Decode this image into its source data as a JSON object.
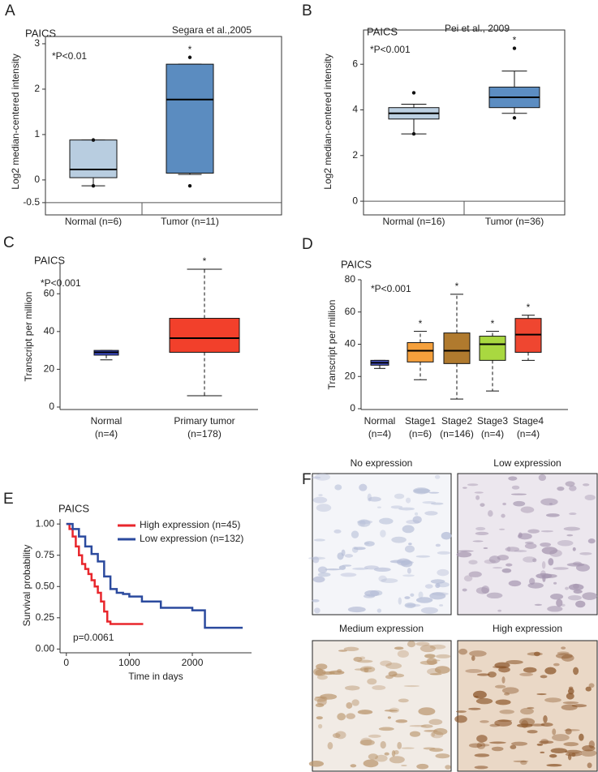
{
  "chart_data": [
    {
      "type": "box",
      "panel": "A",
      "title": "PAICS",
      "source": "Segara et al.,2005",
      "annotation": "*P<0.01",
      "ylabel": "Log2 median-centered intensity",
      "ylim": [
        -0.77,
        3.16
      ],
      "yticks": [
        -0.5,
        0,
        1,
        2,
        3
      ],
      "baseline": -0.5,
      "frame": true,
      "boxes": [
        {
          "category": "Normal (n=6)",
          "color": "#b8cde0",
          "whisker_low": -0.13,
          "q1": 0.05,
          "median": 0.23,
          "q3": 0.88,
          "whisker_high": 0.88,
          "dots": [
            0.88,
            -0.13
          ]
        },
        {
          "category": "Tumor (n=11)",
          "color": "#5b8cc0",
          "whisker_low": 0.12,
          "q1": 0.15,
          "median": 1.77,
          "q3": 2.55,
          "whisker_high": 2.55,
          "dots": [
            2.7,
            -0.13
          ],
          "star": "*"
        }
      ]
    },
    {
      "type": "box",
      "panel": "B",
      "title": "PAICS",
      "source": "Pei et al., 2009",
      "annotation": "*P<0.001",
      "ylabel": "Log2 median-centered intensity",
      "ylim": [
        -0.6,
        7.5
      ],
      "yticks": [
        0,
        2,
        4,
        6
      ],
      "baseline": 0,
      "frame": true,
      "boxes": [
        {
          "category": "Normal (n=16)",
          "color": "#bcd0e2",
          "whisker_low": 2.95,
          "q1": 3.6,
          "median": 3.85,
          "q3": 4.1,
          "whisker_high": 4.25,
          "dots": [
            4.75,
            2.95
          ]
        },
        {
          "category": "Tumor (n=36)",
          "color": "#5c8dc2",
          "whisker_low": 3.85,
          "q1": 4.1,
          "median": 4.55,
          "q3": 5.0,
          "whisker_high": 5.7,
          "dots": [
            6.7,
            3.65
          ],
          "star": "*"
        }
      ]
    },
    {
      "type": "box",
      "panel": "C",
      "title": "PAICS",
      "annotation": "*P<0.001",
      "ylabel": "Transcript per million",
      "ylim": [
        -1.3,
        76
      ],
      "yticks": [
        0,
        20,
        40,
        60
      ],
      "frame": false,
      "boxes": [
        {
          "category": [
            "Normal",
            "(n=4)"
          ],
          "color": "#3f4fd4",
          "whisker_low": 25,
          "q1": 27.5,
          "median": 29,
          "q3": 30,
          "whisker_high": 30,
          "dots": []
        },
        {
          "category": [
            "Primary tumor",
            "(n=178)"
          ],
          "color": "#f2402b",
          "whisker_low": 6,
          "q1": 29,
          "median": 36.5,
          "q3": 47,
          "whisker_high": 73,
          "dots": [],
          "star": "*"
        }
      ]
    },
    {
      "type": "box",
      "panel": "D",
      "title": "PAICS",
      "annotation": "*P<0.001",
      "ylabel": "Transcript per million",
      "ylim": [
        -0.5,
        80
      ],
      "yticks": [
        0,
        20,
        40,
        60,
        80
      ],
      "frame": false,
      "boxes": [
        {
          "category": [
            "Normal",
            "(n=4)"
          ],
          "color": "#4a56c8",
          "whisker_low": 25,
          "q1": 27,
          "median": 28.5,
          "q3": 30,
          "whisker_high": 30,
          "dots": []
        },
        {
          "category": [
            "Stage1",
            "(n=6)"
          ],
          "color": "#f5a03c",
          "whisker_low": 18,
          "q1": 29,
          "median": 36,
          "q3": 41,
          "whisker_high": 48,
          "dots": [],
          "star": "*"
        },
        {
          "category": [
            "Stage2",
            "(n=146)"
          ],
          "color": "#b07a2e",
          "whisker_low": 6,
          "q1": 28,
          "median": 36,
          "q3": 47,
          "whisker_high": 71,
          "dots": [],
          "star": "*"
        },
        {
          "category": [
            "Stage3",
            "(n=4)"
          ],
          "color": "#a9d840",
          "whisker_low": 11,
          "q1": 30,
          "median": 40,
          "q3": 45,
          "whisker_high": 48,
          "dots": [],
          "star": "*"
        },
        {
          "category": [
            "Stage4",
            "(n=4)"
          ],
          "color": "#ef4630",
          "whisker_low": 30,
          "q1": 35,
          "median": 46,
          "q3": 56,
          "whisker_high": 58,
          "dots": [],
          "star": "*"
        }
      ]
    },
    {
      "type": "line",
      "step": true,
      "panel": "E",
      "title": "PAICS",
      "xlabel": "Time in days",
      "ylabel": "Survival probability",
      "annotation": "p=0.0061",
      "xlim": [
        -100,
        2940
      ],
      "ylim": [
        -0.03,
        1.04
      ],
      "xticks": [
        0,
        1000,
        2000
      ],
      "yticks": [
        {
          "value": 0,
          "label": "0.00"
        },
        {
          "value": 0.25,
          "label": "0.25"
        },
        {
          "value": 0.5,
          "label": "0.50"
        },
        {
          "value": 0.75,
          "label": "0.75"
        },
        {
          "value": 1,
          "label": "1.00"
        }
      ],
      "series": [
        {
          "name": "High expression (n=45)",
          "color": "#e8262c",
          "x": [
            0,
            50,
            100,
            150,
            200,
            250,
            300,
            350,
            400,
            450,
            500,
            550,
            600,
            650,
            700,
            1220
          ],
          "values": [
            1,
            0.96,
            0.9,
            0.82,
            0.75,
            0.68,
            0.64,
            0.6,
            0.55,
            0.5,
            0.45,
            0.38,
            0.3,
            0.22,
            0.2,
            0.2
          ]
        },
        {
          "name": "Low expression (n=132)",
          "color": "#2b4a9e",
          "x": [
            0,
            100,
            200,
            300,
            400,
            500,
            600,
            700,
            800,
            900,
            1000,
            1200,
            1500,
            1800,
            2000,
            2200,
            2800
          ],
          "values": [
            1,
            0.96,
            0.9,
            0.82,
            0.76,
            0.7,
            0.58,
            0.48,
            0.45,
            0.44,
            0.42,
            0.38,
            0.33,
            0.33,
            0.31,
            0.17,
            0.17
          ]
        }
      ]
    }
  ],
  "panel_f": {
    "panel": "F",
    "images": [
      {
        "label": "No expression"
      },
      {
        "label": "Low expression"
      },
      {
        "label": "Medium expression"
      },
      {
        "label": "High expression"
      }
    ]
  }
}
